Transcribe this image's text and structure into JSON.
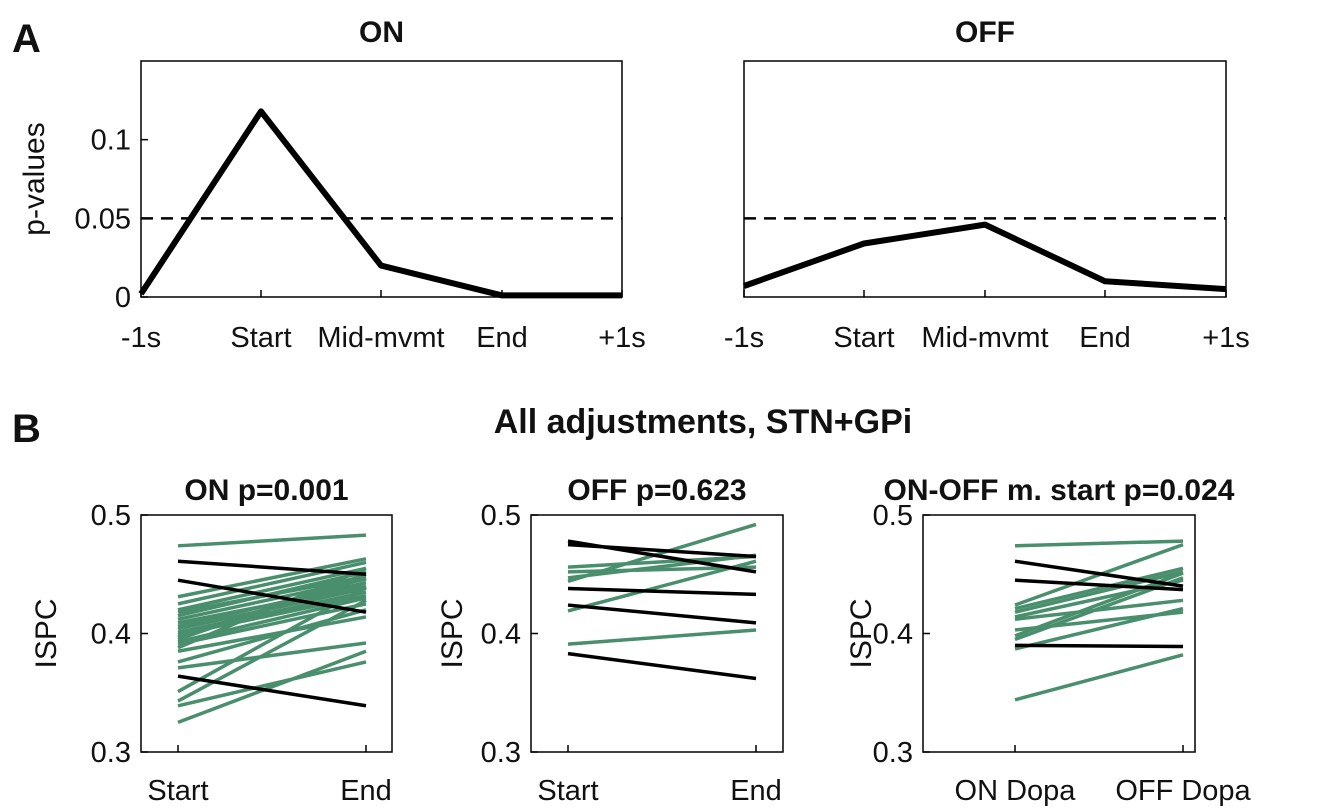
{
  "panel_labels": [
    "A",
    "B"
  ],
  "section_b_title": "All adjustments, STN+GPi",
  "chart_data": [
    {
      "type": "line",
      "title": "ON",
      "ylabel": "p-values",
      "xlabel": "",
      "categories": [
        "-1s",
        "Start",
        "Mid-mvmt",
        "End",
        "+1s"
      ],
      "series": [
        {
          "values": [
            0.002,
            0.118,
            0.02,
            0.001,
            0.001
          ],
          "color": "#000000"
        }
      ],
      "reference_line": {
        "y": 0.05,
        "style": "dashed"
      },
      "ylim": [
        0,
        0.15
      ],
      "yticks": [
        0,
        0.05,
        0.1
      ],
      "ytick_labels": [
        "0",
        "0.05",
        "0.1"
      ]
    },
    {
      "type": "line",
      "title": "OFF",
      "ylabel": "",
      "xlabel": "",
      "categories": [
        "-1s",
        "Start",
        "Mid-mvmt",
        "End",
        "+1s"
      ],
      "series": [
        {
          "values": [
            0.007,
            0.034,
            0.046,
            0.01,
            0.005
          ],
          "color": "#000000"
        }
      ],
      "reference_line": {
        "y": 0.05,
        "style": "dashed"
      },
      "ylim": [
        0,
        0.15
      ],
      "yticks": [],
      "ytick_labels": []
    },
    {
      "type": "line",
      "title": "ON p=0.001",
      "ylabel": "ISPC",
      "xlabel": "",
      "categories": [
        "Start",
        "End"
      ],
      "ylim": [
        0.3,
        0.5
      ],
      "yticks": [
        0.3,
        0.4,
        0.5
      ],
      "ytick_labels": [
        "0.3",
        "0.4",
        "0.5"
      ],
      "series_colors": {
        "increase": "#4a8f6d",
        "decrease": "#000000"
      },
      "pairs": [
        [
          0.474,
          0.483
        ],
        [
          0.461,
          0.45
        ],
        [
          0.445,
          0.418
        ],
        [
          0.364,
          0.339
        ],
        [
          0.431,
          0.463
        ],
        [
          0.425,
          0.46
        ],
        [
          0.42,
          0.455
        ],
        [
          0.418,
          0.448
        ],
        [
          0.415,
          0.452
        ],
        [
          0.412,
          0.446
        ],
        [
          0.409,
          0.44
        ],
        [
          0.406,
          0.443
        ],
        [
          0.404,
          0.438
        ],
        [
          0.401,
          0.435
        ],
        [
          0.399,
          0.432
        ],
        [
          0.397,
          0.447
        ],
        [
          0.395,
          0.45
        ],
        [
          0.393,
          0.43
        ],
        [
          0.391,
          0.425
        ],
        [
          0.388,
          0.455
        ],
        [
          0.385,
          0.414
        ],
        [
          0.376,
          0.42
        ],
        [
          0.371,
          0.392
        ],
        [
          0.351,
          0.439
        ],
        [
          0.343,
          0.428
        ],
        [
          0.339,
          0.376
        ],
        [
          0.325,
          0.385
        ]
      ]
    },
    {
      "type": "line",
      "title": "OFF p=0.623",
      "ylabel": "ISPC",
      "xlabel": "",
      "categories": [
        "Start",
        "End"
      ],
      "ylim": [
        0.3,
        0.5
      ],
      "yticks": [
        0.3,
        0.4,
        0.5
      ],
      "ytick_labels": [
        "0.3",
        "0.4",
        "0.5"
      ],
      "series_colors": {
        "increase": "#4a8f6d",
        "decrease": "#000000"
      },
      "pairs": [
        [
          0.478,
          0.452
        ],
        [
          0.475,
          0.465
        ],
        [
          0.456,
          0.465
        ],
        [
          0.452,
          0.456
        ],
        [
          0.447,
          0.466
        ],
        [
          0.444,
          0.492
        ],
        [
          0.438,
          0.433
        ],
        [
          0.424,
          0.409
        ],
        [
          0.419,
          0.461
        ],
        [
          0.391,
          0.403
        ],
        [
          0.383,
          0.362
        ]
      ]
    },
    {
      "type": "line",
      "title": "ON-OFF m. start p=0.024",
      "ylabel": "ISPC",
      "xlabel": "",
      "categories": [
        "ON Dopa",
        "OFF Dopa"
      ],
      "ylim": [
        0.3,
        0.5
      ],
      "yticks": [
        0.3,
        0.4,
        0.5
      ],
      "ytick_labels": [
        "0.3",
        "0.4",
        "0.5"
      ],
      "series_colors": {
        "increase": "#4a8f6d",
        "decrease": "#000000"
      },
      "pairs": [
        [
          0.474,
          0.478
        ],
        [
          0.461,
          0.44
        ],
        [
          0.445,
          0.437
        ],
        [
          0.424,
          0.475
        ],
        [
          0.421,
          0.455
        ],
        [
          0.418,
          0.452
        ],
        [
          0.414,
          0.445
        ],
        [
          0.412,
          0.428
        ],
        [
          0.403,
          0.418
        ],
        [
          0.398,
          0.451
        ],
        [
          0.395,
          0.447
        ],
        [
          0.39,
          0.389
        ],
        [
          0.387,
          0.421
        ],
        [
          0.344,
          0.382
        ]
      ]
    }
  ]
}
